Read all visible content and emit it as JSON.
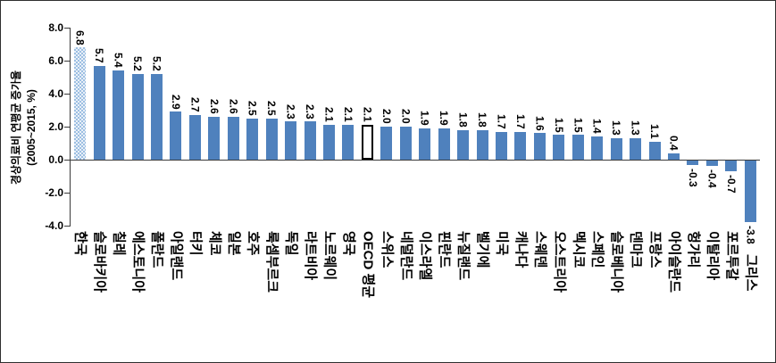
{
  "figure": {
    "background": "#ffffff",
    "border_color": "#2f2f2f"
  },
  "chart_data": {
    "type": "bar",
    "title": "",
    "ylabel_line1": "경상의료비 연평균 증가율",
    "ylabel_line2": "(2005~2015,  %)",
    "ylim": [
      -4,
      8
    ],
    "yticks": [
      8,
      6,
      4,
      2,
      0,
      -2,
      -4
    ],
    "ytick_labels": [
      "8.0",
      "6.0",
      "4.0",
      "2.0",
      "0.0",
      "-2.0",
      "-4.0"
    ],
    "grid": false,
    "legend": "none",
    "categories": [
      "한국",
      "슬로바키아",
      "칠레",
      "에스토니아",
      "폴란드",
      "아일랜드",
      "터키",
      "체코",
      "일본",
      "호주",
      "룩셈부르크",
      "독일",
      "라트비아",
      "노르웨이",
      "영국",
      "OECD 평균",
      "스위스",
      "네덜란드",
      "이스라엘",
      "핀란드",
      "뉴질랜드",
      "벨기에",
      "미국",
      "캐나다",
      "스웨덴",
      "오스트리아",
      "멕시코",
      "스페인",
      "슬로베니아",
      "덴마크",
      "프랑스",
      "아이슬란드",
      "헝가리",
      "이탈리아",
      "포르투갈",
      "그리스"
    ],
    "values": [
      6.8,
      5.7,
      5.4,
      5.2,
      5.2,
      2.9,
      2.7,
      2.6,
      2.6,
      2.5,
      2.5,
      2.3,
      2.3,
      2.1,
      2.1,
      2.1,
      2.0,
      2.0,
      1.9,
      1.9,
      1.8,
      1.8,
      1.7,
      1.7,
      1.6,
      1.5,
      1.5,
      1.4,
      1.3,
      1.3,
      1.1,
      0.4,
      -0.3,
      -0.4,
      -0.7,
      -3.8
    ],
    "value_labels": [
      "6.8",
      "5.7",
      "5.4",
      "5.2",
      "5.2",
      "2.9",
      "2.7",
      "2.6",
      "2.6",
      "2.5",
      "2.5",
      "2.3",
      "2.3",
      "2.1",
      "2.1",
      "2.1",
      "2.0",
      "2.0",
      "1.9",
      "1.9",
      "1.8",
      "1.8",
      "1.7",
      "1.7",
      "1.6",
      "1.5",
      "1.5",
      "1.4",
      "1.3",
      "1.3",
      "1.1",
      "0.4",
      "-0.3",
      "-0.4",
      "-0.7",
      "-3.8"
    ],
    "korea_index": 0,
    "oecd_index": 15,
    "bar_color": "#4f81bd",
    "korea_fill_a": "#9dbfe2",
    "korea_fill_b": "#e9f0f8",
    "oecd_fill": "#ffffff",
    "oecd_border": "#000000"
  }
}
